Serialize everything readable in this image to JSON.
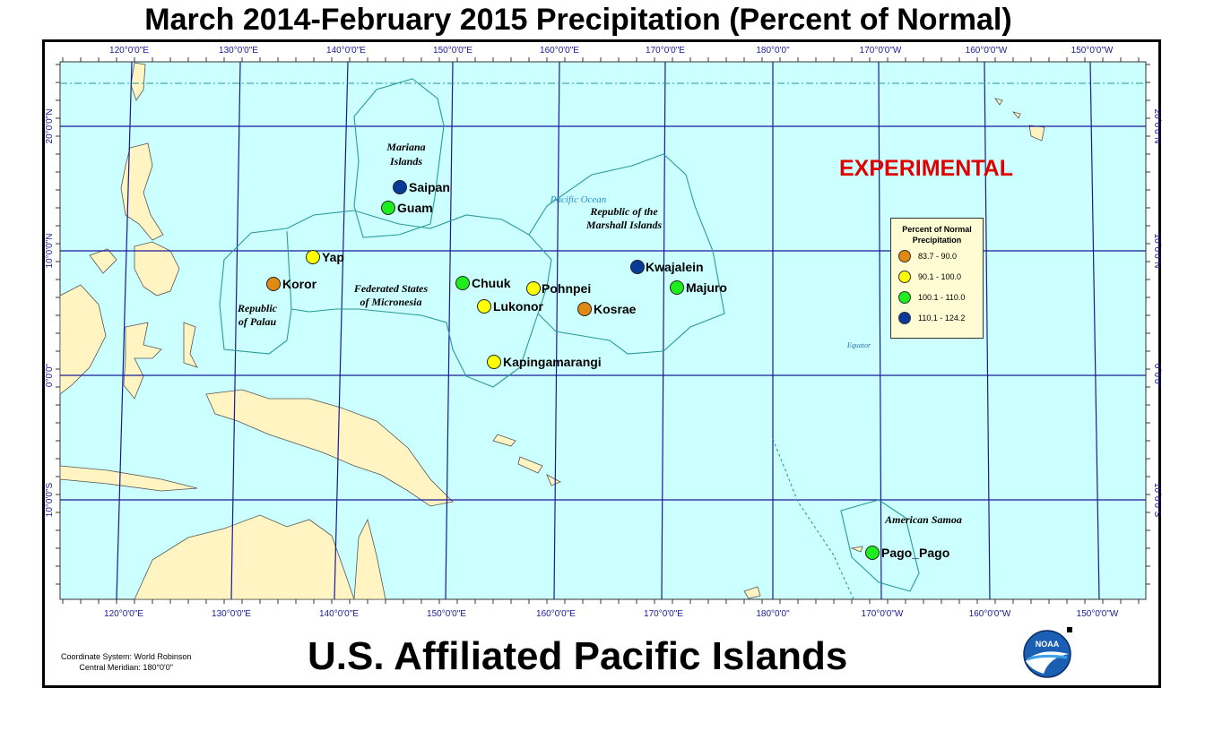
{
  "title": "March 2014-February 2015 Precipitation (Percent of Normal)",
  "subtitle": "U.S. Affiliated Pacific Islands",
  "experimental": "EXPERIMENTAL",
  "coordinate_system": "Coordinate System: World Robinson",
  "central_meridian": "Central Meridian: 180°0'0\"",
  "colors": {
    "ocean": "#ccffff",
    "land": "#fff4c2",
    "grid": "#1a1a99",
    "boundary": "#2a9a9a",
    "c1": "#e08a14",
    "c2": "#ffff00",
    "c3": "#1eee1e",
    "c4": "#0a3a99"
  },
  "lon_labels": [
    "120°0'0\"E",
    "130°0'0\"E",
    "140°0'0\"E",
    "150°0'0\"E",
    "160°0'0\"E",
    "170°0'0\"E",
    "180°0'0\"",
    "170°0'0\"W",
    "160°0'0\"W",
    "150°0'0\"W"
  ],
  "lat_labels": [
    "20°0'0\"N",
    "10°0'0\"N",
    "0°0'0\"",
    "10°0'0\"S"
  ],
  "legend": {
    "title": "Percent of Normal Precipitation",
    "items": [
      {
        "label": "83.7 - 90.0",
        "color": "#e08a14"
      },
      {
        "label": "90.1 - 100.0",
        "color": "#ffff00"
      },
      {
        "label": "100.1 - 110.0",
        "color": "#1eee1e"
      },
      {
        "label": "110.1 - 124.2",
        "color": "#0a3a99"
      }
    ]
  },
  "regions": {
    "mariana_1": "Mariana",
    "mariana_2": "Islands",
    "palau_1": "Republic",
    "palau_2": "of Palau",
    "fsm_1": "Federated States",
    "fsm_2": "of Micronesia",
    "marshall_1": "Republic of the",
    "marshall_2": "Marshall Islands",
    "samoa": "American Samoa",
    "ocean": "Pacific Ocean",
    "equator": "Equator"
  },
  "stations": [
    {
      "name": "Saipan",
      "category": "110.1 - 124.2"
    },
    {
      "name": "Guam",
      "category": "100.1 - 110.0"
    },
    {
      "name": "Yap",
      "category": "90.1 - 100.0"
    },
    {
      "name": "Koror",
      "category": "83.7 - 90.0"
    },
    {
      "name": "Chuuk",
      "category": "100.1 - 110.0"
    },
    {
      "name": "Pohnpei",
      "category": "90.1 - 100.0"
    },
    {
      "name": "Lukonor",
      "category": "90.1 - 100.0"
    },
    {
      "name": "Kosrae",
      "category": "83.7 - 90.0"
    },
    {
      "name": "Kwajalein",
      "category": "110.1 - 124.2"
    },
    {
      "name": "Majuro",
      "category": "100.1 - 110.0"
    },
    {
      "name": "Kapingamarangi",
      "category": "90.1 - 100.0"
    },
    {
      "name": "Pago_Pago",
      "category": "100.1 - 110.0"
    }
  ],
  "logo_text": "NOAA"
}
